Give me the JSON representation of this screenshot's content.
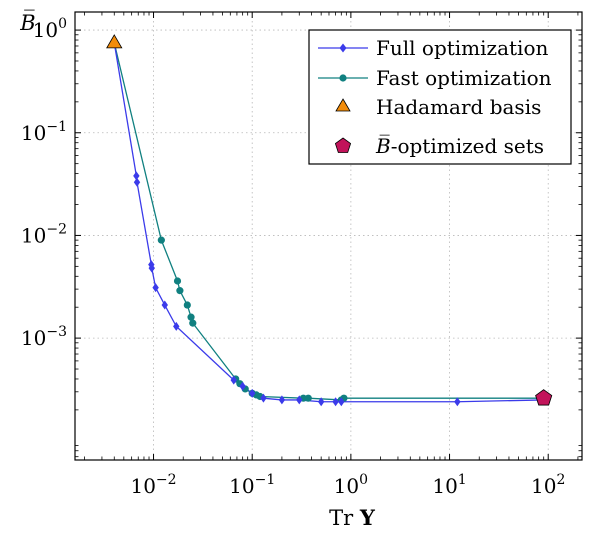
{
  "chart_data": {
    "type": "line",
    "xscale": "log",
    "yscale": "log",
    "xlim": [
      0.0016,
      220
    ],
    "ylim": [
      6.5e-05,
      1.5
    ],
    "grid": true,
    "legend_position": "top-right",
    "x_ticks": [
      {
        "value": 0.01,
        "base": "10",
        "exp": "−2"
      },
      {
        "value": 0.1,
        "base": "10",
        "exp": "−1"
      },
      {
        "value": 1,
        "base": "10",
        "exp": "0"
      },
      {
        "value": 10,
        "base": "10",
        "exp": "1"
      },
      {
        "value": 100,
        "base": "10",
        "exp": "2"
      }
    ],
    "y_ticks": [
      {
        "value": 1,
        "base": "10",
        "exp": "0"
      },
      {
        "value": 0.1,
        "base": "10",
        "exp": "−1"
      },
      {
        "value": 0.01,
        "base": "10",
        "exp": "−2"
      },
      {
        "value": 0.001,
        "base": "10",
        "exp": "−3"
      }
    ],
    "xlabel": {
      "prefix": "Tr ",
      "symbol": "Y"
    },
    "ylabel": "B̅",
    "series": [
      {
        "name": "Full optimization",
        "color": "#3b3bea",
        "marker": "diamond",
        "points": [
          [
            0.004,
            0.75
          ],
          [
            0.0067,
            0.038
          ],
          [
            0.0068,
            0.033
          ],
          [
            0.0095,
            0.0052
          ],
          [
            0.0096,
            0.0048
          ],
          [
            0.0105,
            0.0031
          ],
          [
            0.013,
            0.0021
          ],
          [
            0.017,
            0.0013
          ],
          [
            0.065,
            0.00039
          ],
          [
            0.08,
            0.00034
          ],
          [
            0.1,
            0.00029
          ],
          [
            0.13,
            0.00026
          ],
          [
            0.2,
            0.00025
          ],
          [
            0.3,
            0.00025
          ],
          [
            0.5,
            0.00024
          ],
          [
            0.7,
            0.00024
          ],
          [
            0.8,
            0.00024
          ],
          [
            12,
            0.00024
          ],
          [
            90,
            0.00025
          ]
        ]
      },
      {
        "name": "Fast optimization",
        "color": "#108080",
        "marker": "circle",
        "points": [
          [
            0.004,
            0.75
          ],
          [
            0.012,
            0.009
          ],
          [
            0.0175,
            0.0036
          ],
          [
            0.0185,
            0.0029
          ],
          [
            0.022,
            0.0021
          ],
          [
            0.024,
            0.0016
          ],
          [
            0.025,
            0.0014
          ],
          [
            0.068,
            0.0004
          ],
          [
            0.075,
            0.00036
          ],
          [
            0.085,
            0.00032
          ],
          [
            0.1,
            0.00029
          ],
          [
            0.11,
            0.00028
          ],
          [
            0.12,
            0.00027
          ],
          [
            0.33,
            0.00026
          ],
          [
            0.37,
            0.00026
          ],
          [
            0.8,
            0.00025
          ],
          [
            0.85,
            0.00026
          ],
          [
            90,
            0.00026
          ]
        ]
      },
      {
        "name": "Hadamard basis",
        "color": "#f28c0a",
        "marker": "triangle",
        "points": [
          [
            0.004,
            0.75
          ]
        ]
      },
      {
        "name": "-optimized sets",
        "color": "#c2135a",
        "marker": "pentagon",
        "points": [
          [
            90,
            0.00026
          ]
        ]
      }
    ]
  }
}
